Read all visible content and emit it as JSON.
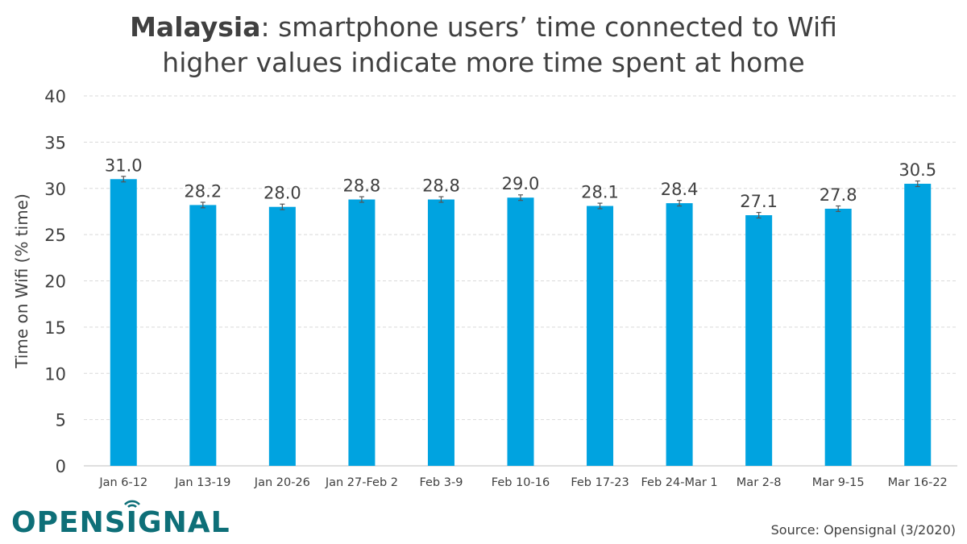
{
  "title": {
    "country": "Malaysia",
    "rest": ": smartphone users’ time connected to Wifi",
    "subtitle": "higher values indicate more time spent at home"
  },
  "source": "Source: Opensignal (3/2020)",
  "logo": {
    "part1": "OPENS",
    "part2": "I",
    "part3": "GNAL",
    "color": "#0e6f78"
  },
  "colors": {
    "bar": "#00a3e0",
    "grid": "#d9d9d9",
    "text": "#404040",
    "errorbar": "#555555"
  },
  "chart_data": {
    "type": "bar",
    "title": "Malaysia: smartphone users’ time connected to Wifi",
    "subtitle": "higher values indicate more time spent at home",
    "xlabel": "",
    "ylabel": "Time on Wifi (% time)",
    "ylim": [
      0,
      40
    ],
    "yticks": [
      0,
      5,
      10,
      15,
      20,
      25,
      30,
      35,
      40
    ],
    "grid": true,
    "error_bar": 0.3,
    "categories": [
      "Jan 6-12",
      "Jan 13-19",
      "Jan 20-26",
      "Jan 27-Feb 2",
      "Feb 3-9",
      "Feb 10-16",
      "Feb 17-23",
      "Feb 24-Mar 1",
      "Mar 2-8",
      "Mar 9-15",
      "Mar 16-22"
    ],
    "values": [
      31.0,
      28.2,
      28.0,
      28.8,
      28.8,
      29.0,
      28.1,
      28.4,
      27.1,
      27.8,
      30.5
    ],
    "labels": [
      "31.0",
      "28.2",
      "28.0",
      "28.8",
      "28.8",
      "29.0",
      "28.1",
      "28.4",
      "27.1",
      "27.8",
      "30.5"
    ]
  }
}
